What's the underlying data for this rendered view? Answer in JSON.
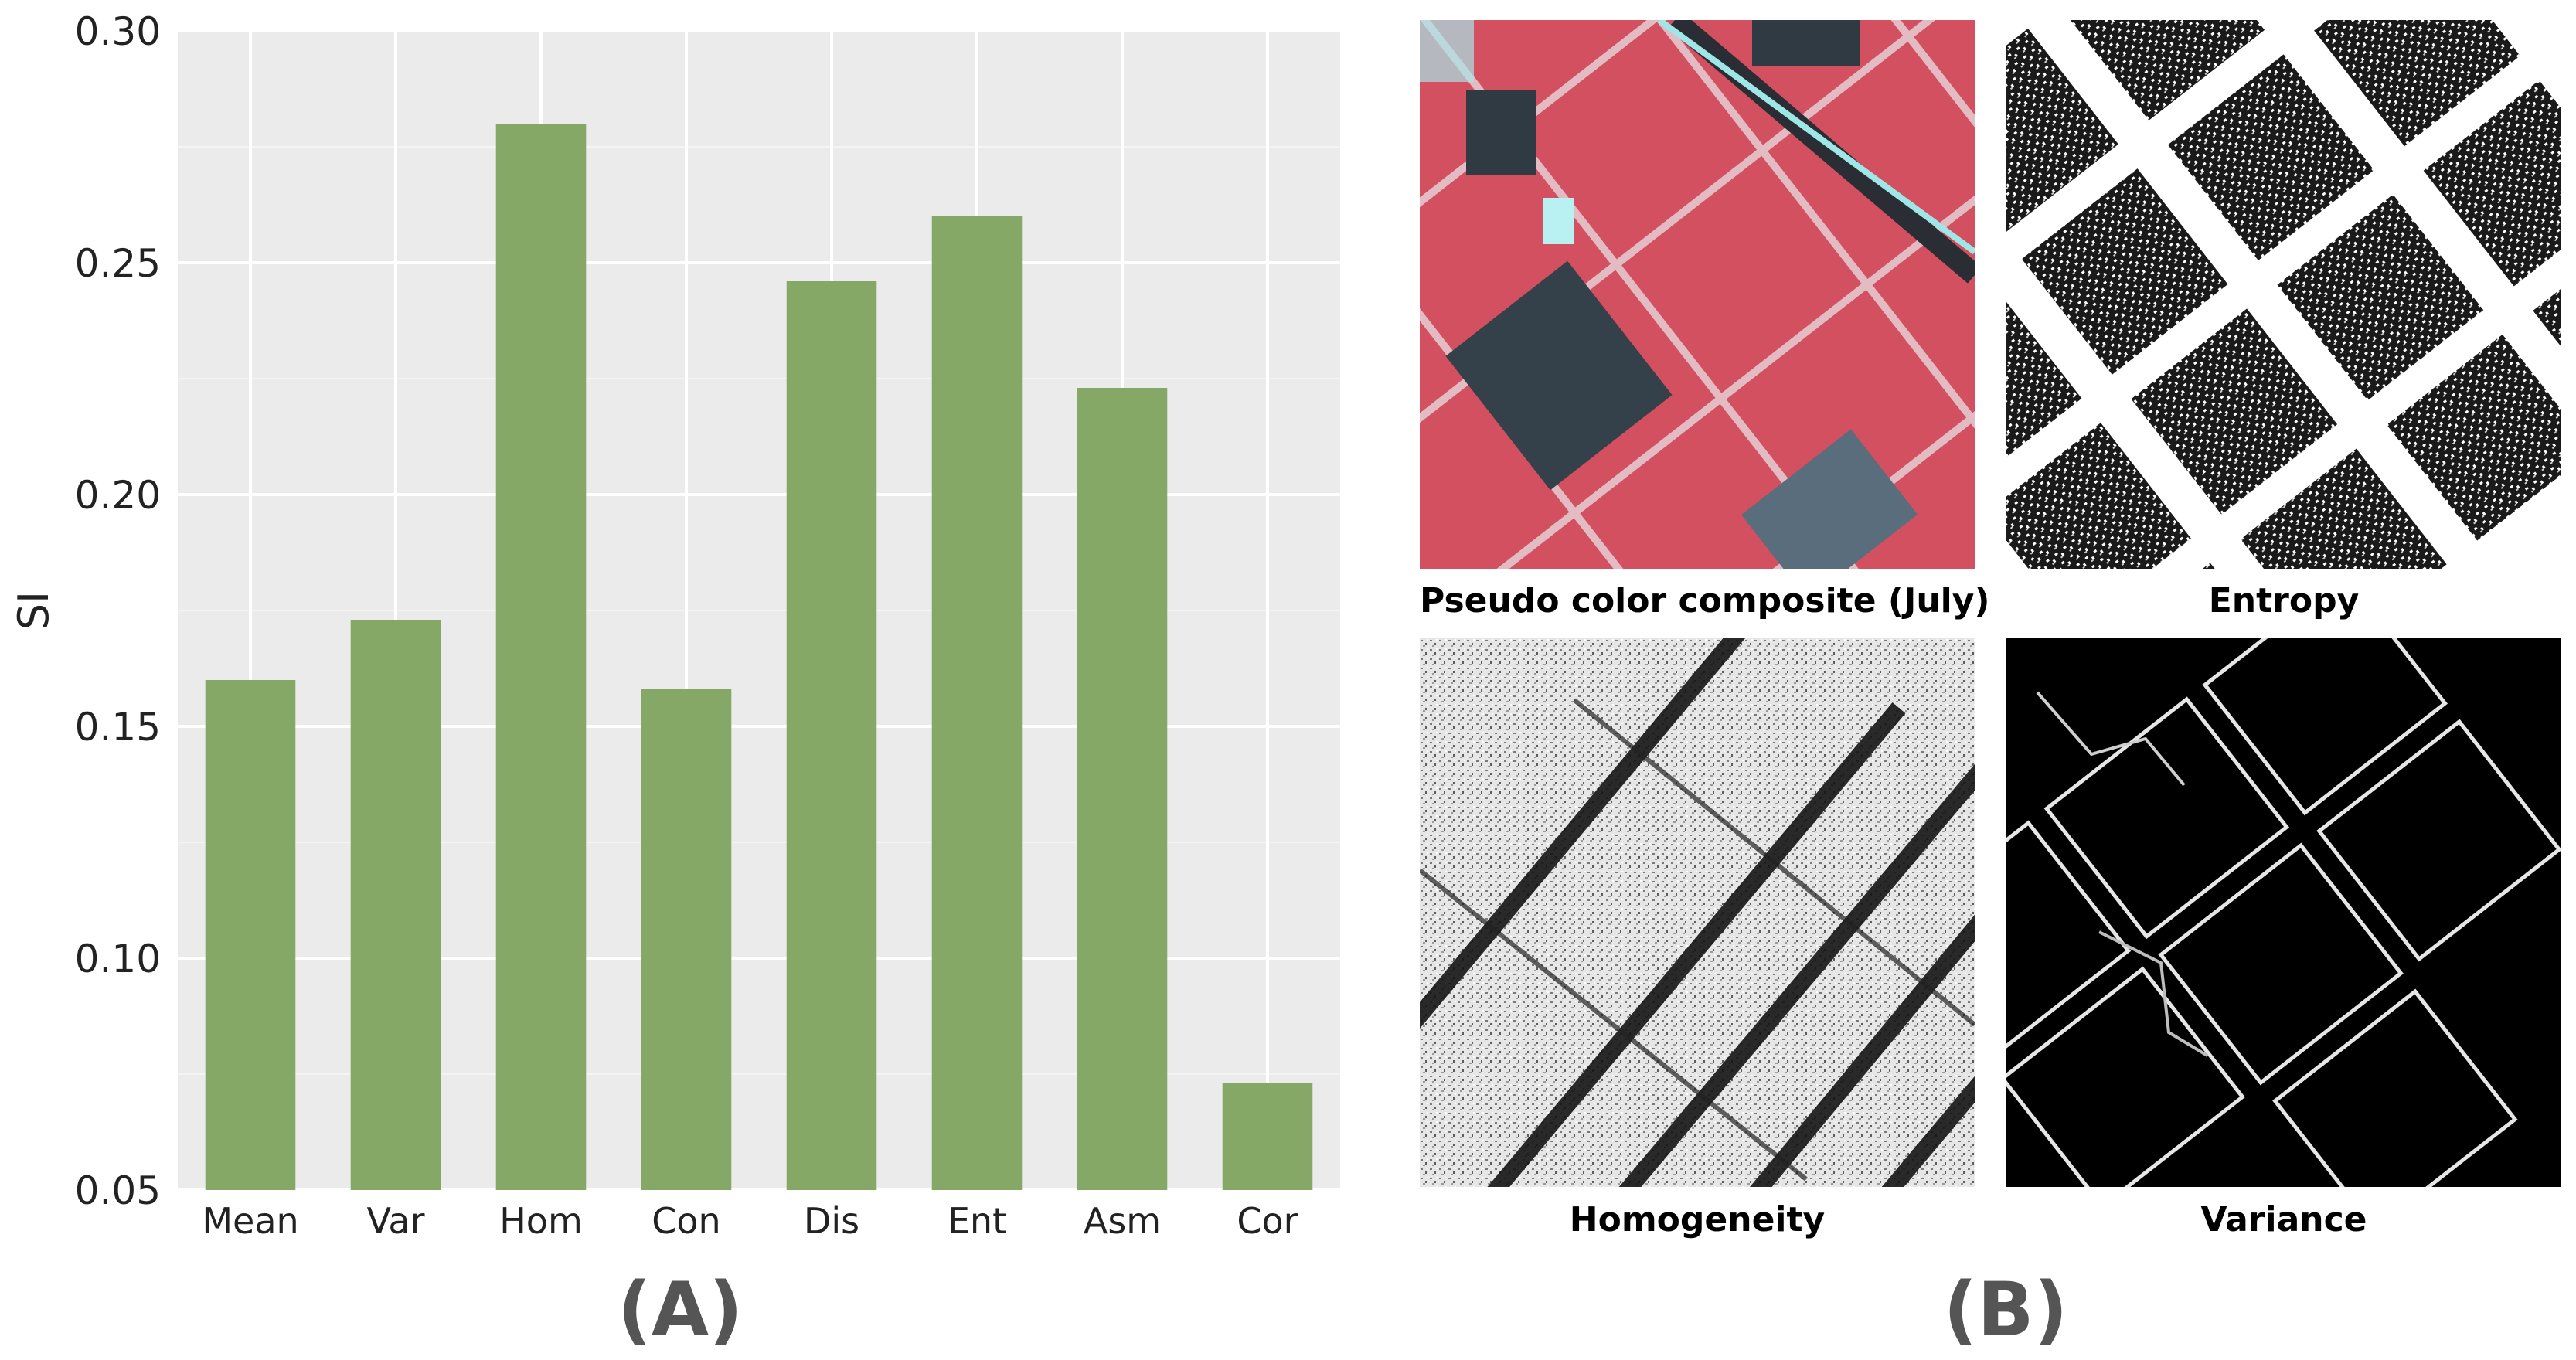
{
  "chart_data": {
    "type": "bar",
    "categories": [
      "Mean",
      "Var",
      "Hom",
      "Con",
      "Dis",
      "Ent",
      "Asm",
      "Cor"
    ],
    "values": [
      0.16,
      0.173,
      0.28,
      0.158,
      0.246,
      0.26,
      0.223,
      0.073
    ],
    "ylabel": "SI",
    "xlabel": "",
    "ylim": [
      0.05,
      0.3
    ],
    "yticks": [
      "0.05",
      "0.10",
      "0.15",
      "0.20",
      "0.25",
      "0.30"
    ],
    "grid": true,
    "bar_color": "#85a866",
    "background_color": "#ebebeb"
  },
  "panel_labels": {
    "left": "(A)",
    "right": "(B)"
  },
  "images": [
    {
      "caption": "Pseudo color composite (July)",
      "kind": "pseudo-color"
    },
    {
      "caption": "Entropy",
      "kind": "entropy"
    },
    {
      "caption": "Homogeneity",
      "kind": "homogeneity"
    },
    {
      "caption": "Variance",
      "kind": "variance"
    }
  ]
}
